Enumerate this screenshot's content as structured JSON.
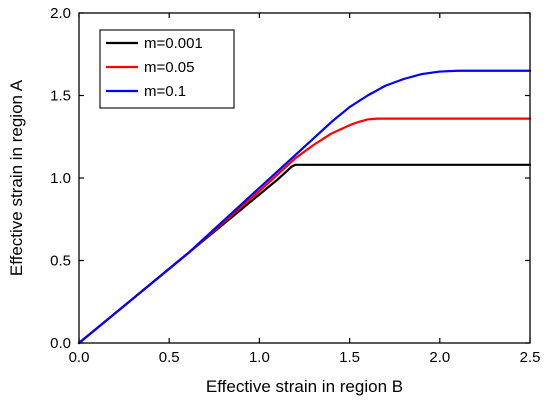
{
  "chart_data": {
    "type": "line",
    "title": "",
    "xlabel": "Effective strain in region B",
    "ylabel": "Effective strain in region A",
    "xlim": [
      0,
      2.5
    ],
    "ylim": [
      0,
      2.0
    ],
    "xticks": [
      0.0,
      0.5,
      1.0,
      1.5,
      2.0,
      2.5
    ],
    "yticks": [
      0.0,
      0.5,
      1.0,
      1.5,
      2.0
    ],
    "xtick_labels": [
      "0.0",
      "0.5",
      "1.0",
      "1.5",
      "2.0",
      "2.5"
    ],
    "ytick_labels": [
      "0.0",
      "0.5",
      "1.0",
      "1.5",
      "2.0"
    ],
    "grid": false,
    "legend_position": "top-left",
    "series": [
      {
        "name": "m=0.001",
        "color": "#000000",
        "x": [
          0,
          0.2,
          0.4,
          0.6,
          0.8,
          1.0,
          1.1,
          1.15,
          1.18,
          1.2,
          1.25,
          1.5,
          2.0,
          2.5
        ],
        "y": [
          0,
          0.18,
          0.36,
          0.54,
          0.72,
          0.9,
          0.99,
          1.04,
          1.07,
          1.08,
          1.08,
          1.08,
          1.08,
          1.08
        ]
      },
      {
        "name": "m=0.05",
        "color": "#ff0000",
        "x": [
          0,
          0.2,
          0.4,
          0.6,
          0.8,
          1.0,
          1.1,
          1.2,
          1.3,
          1.4,
          1.5,
          1.55,
          1.6,
          1.65,
          1.7,
          2.0,
          2.5
        ],
        "y": [
          0,
          0.18,
          0.36,
          0.54,
          0.73,
          0.92,
          1.02,
          1.12,
          1.2,
          1.27,
          1.32,
          1.34,
          1.355,
          1.36,
          1.36,
          1.36,
          1.36
        ]
      },
      {
        "name": "m=0.1",
        "color": "#0000ff",
        "x": [
          0,
          0.2,
          0.4,
          0.6,
          0.8,
          1.0,
          1.1,
          1.2,
          1.3,
          1.4,
          1.5,
          1.6,
          1.7,
          1.8,
          1.9,
          2.0,
          2.1,
          2.2,
          2.5
        ],
        "y": [
          0,
          0.18,
          0.36,
          0.54,
          0.74,
          0.94,
          1.04,
          1.14,
          1.24,
          1.34,
          1.43,
          1.5,
          1.56,
          1.6,
          1.63,
          1.645,
          1.65,
          1.65,
          1.65
        ]
      }
    ]
  }
}
